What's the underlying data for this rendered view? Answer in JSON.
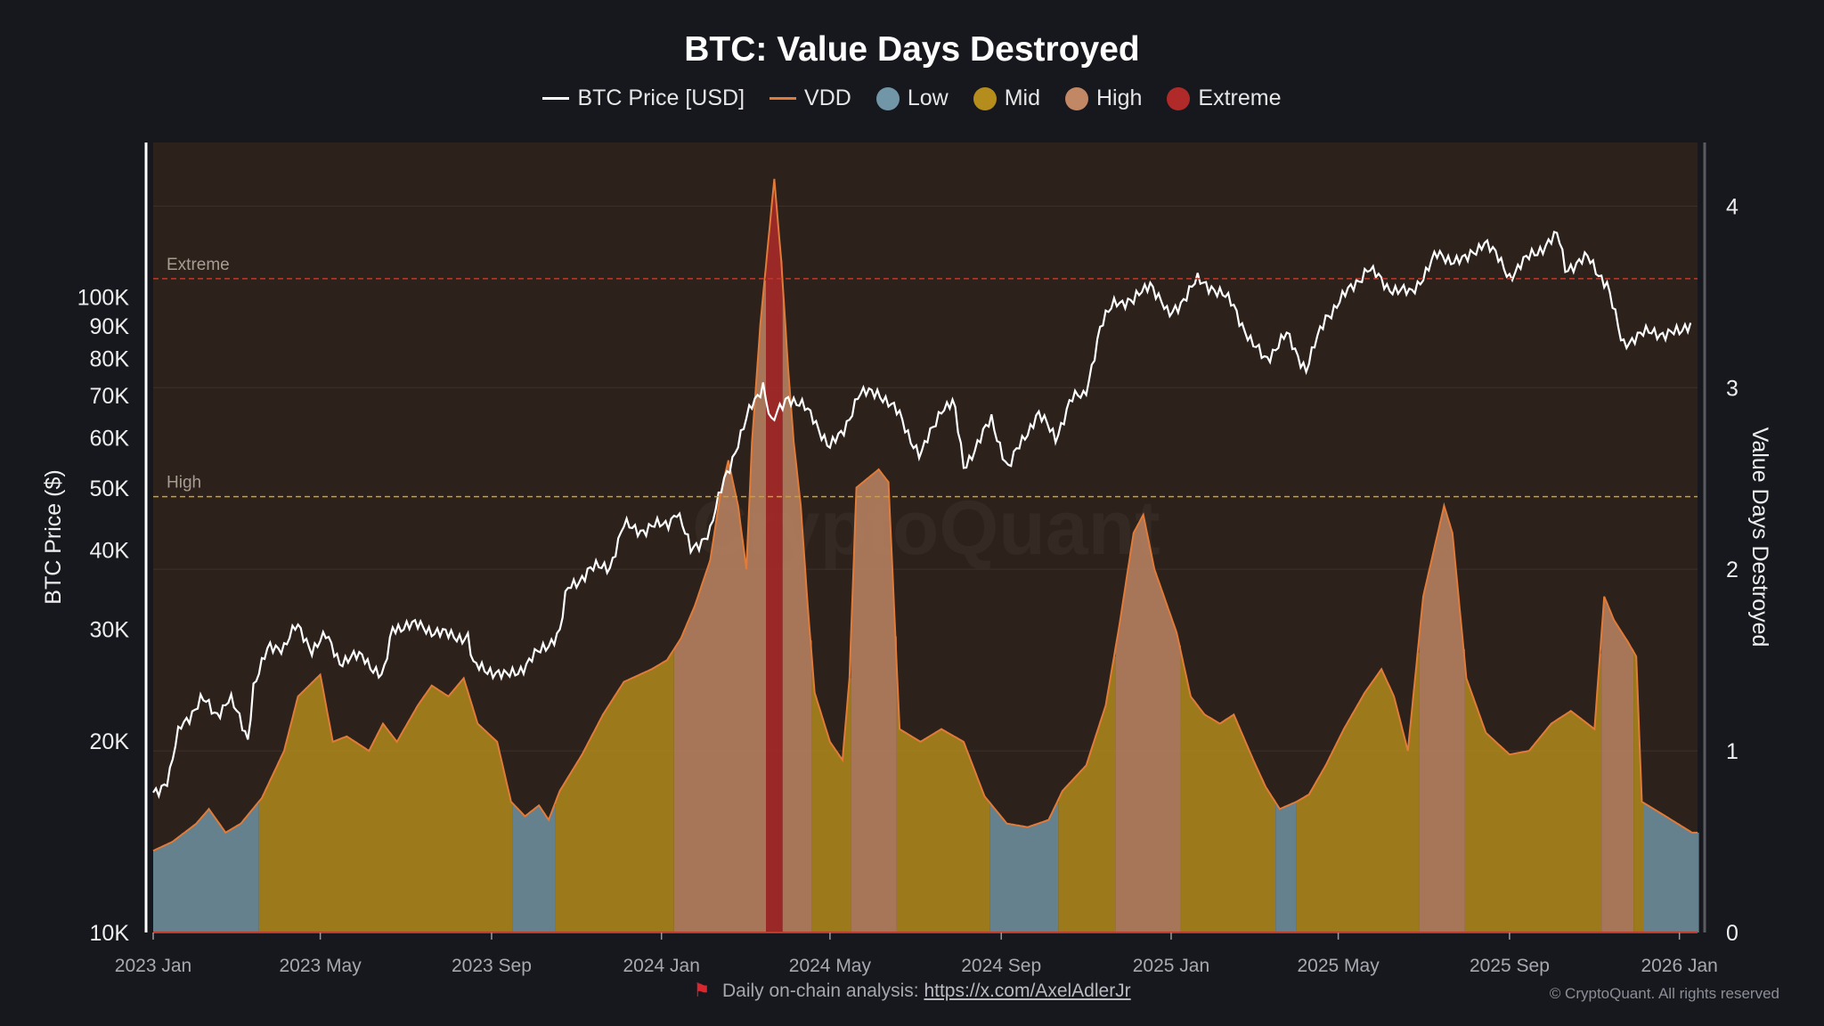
{
  "chart_data": {
    "type": "area",
    "title": "BTC: Value Days Destroyed",
    "legend": {
      "placement": "top-center",
      "items": [
        {
          "label": "BTC Price [USD]",
          "kind": "line",
          "color": "#ffffff"
        },
        {
          "label": "VDD",
          "kind": "line",
          "color": "#e07b39"
        },
        {
          "label": "Low",
          "kind": "dot",
          "color": "#7196a8"
        },
        {
          "label": "Mid",
          "kind": "dot",
          "color": "#b58d1c"
        },
        {
          "label": "High",
          "kind": "dot",
          "color": "#c28765"
        },
        {
          "label": "Extreme",
          "kind": "dot",
          "color": "#b12a2a"
        }
      ]
    },
    "x_axis": {
      "type": "date",
      "range": [
        "2023-01-01",
        "2026-01-14"
      ],
      "ticks": [
        {
          "label": "2023 Jan",
          "date": "2023-01-01"
        },
        {
          "label": "2023 May",
          "date": "2023-05-01"
        },
        {
          "label": "2023 Sep",
          "date": "2023-09-01"
        },
        {
          "label": "2024 Jan",
          "date": "2024-01-01"
        },
        {
          "label": "2024 May",
          "date": "2024-05-01"
        },
        {
          "label": "2024 Sep",
          "date": "2024-09-01"
        },
        {
          "label": "2025 Jan",
          "date": "2025-01-01"
        },
        {
          "label": "2025 May",
          "date": "2025-05-01"
        },
        {
          "label": "2025 Sep",
          "date": "2025-09-01"
        },
        {
          "label": "2026 Jan",
          "date": "2026-01-01"
        }
      ]
    },
    "y_axis_left": {
      "label": "BTC Price ($)",
      "scale": "log",
      "range": [
        10000,
        175000
      ],
      "ticks": [
        {
          "label": "10K",
          "value": 10000
        },
        {
          "label": "20K",
          "value": 20000
        },
        {
          "label": "30K",
          "value": 30000
        },
        {
          "label": "40K",
          "value": 40000
        },
        {
          "label": "50K",
          "value": 50000
        },
        {
          "label": "60K",
          "value": 60000
        },
        {
          "label": "70K",
          "value": 70000
        },
        {
          "label": "80K",
          "value": 80000
        },
        {
          "label": "90K",
          "value": 90000
        },
        {
          "label": "100K",
          "value": 100000
        }
      ]
    },
    "y_axis_right": {
      "label": "Value Days Destroyed",
      "scale": "linear",
      "range": [
        0,
        4.35
      ],
      "ticks": [
        {
          "label": "0",
          "value": 0
        },
        {
          "label": "1",
          "value": 1
        },
        {
          "label": "2",
          "value": 2
        },
        {
          "label": "3",
          "value": 3
        },
        {
          "label": "4",
          "value": 4
        }
      ]
    },
    "grid": true,
    "thresholds": [
      {
        "label": "High",
        "value": 2.4,
        "color": "#c9a227"
      },
      {
        "label": "Extreme",
        "value": 3.6,
        "color": "#c0392b"
      }
    ],
    "bands": {
      "low_max": 0.72,
      "mid_max": 1.55,
      "high_max": 3.6
    },
    "series": [
      {
        "name": "BTC Price [USD]",
        "axis": "left",
        "color": "#ffffff",
        "points": [
          [
            "2023-01-01",
            16600
          ],
          [
            "2023-01-12",
            17400
          ],
          [
            "2023-01-20",
            21000
          ],
          [
            "2023-02-05",
            23300
          ],
          [
            "2023-02-15",
            22000
          ],
          [
            "2023-02-25",
            23400
          ],
          [
            "2023-03-10",
            20200
          ],
          [
            "2023-03-14",
            24500
          ],
          [
            "2023-03-25",
            28000
          ],
          [
            "2023-04-05",
            28300
          ],
          [
            "2023-04-14",
            30300
          ],
          [
            "2023-04-25",
            28000
          ],
          [
            "2023-05-05",
            29200
          ],
          [
            "2023-05-15",
            26800
          ],
          [
            "2023-06-01",
            27200
          ],
          [
            "2023-06-15",
            25100
          ],
          [
            "2023-06-22",
            30100
          ],
          [
            "2023-07-01",
            30500
          ],
          [
            "2023-07-15",
            30200
          ],
          [
            "2023-08-01",
            29300
          ],
          [
            "2023-08-16",
            29200
          ],
          [
            "2023-08-18",
            26200
          ],
          [
            "2023-09-01",
            25900
          ],
          [
            "2023-09-11",
            25200
          ],
          [
            "2023-09-25",
            26300
          ],
          [
            "2023-10-05",
            27600
          ],
          [
            "2023-10-20",
            29700
          ],
          [
            "2023-10-25",
            34500
          ],
          [
            "2023-11-10",
            37200
          ],
          [
            "2023-11-25",
            37800
          ],
          [
            "2023-12-05",
            43600
          ],
          [
            "2023-12-20",
            43000
          ],
          [
            "2024-01-05",
            44100
          ],
          [
            "2024-01-12",
            46000
          ],
          [
            "2024-01-22",
            40000
          ],
          [
            "2024-02-05",
            42700
          ],
          [
            "2024-02-15",
            51800
          ],
          [
            "2024-02-28",
            61000
          ],
          [
            "2024-03-05",
            67000
          ],
          [
            "2024-03-14",
            73000
          ],
          [
            "2024-03-20",
            63000
          ],
          [
            "2024-04-01",
            70000
          ],
          [
            "2024-04-12",
            67000
          ],
          [
            "2024-04-20",
            64000
          ],
          [
            "2024-05-01",
            58000
          ],
          [
            "2024-05-10",
            61000
          ],
          [
            "2024-05-21",
            70000
          ],
          [
            "2024-06-05",
            71000
          ],
          [
            "2024-06-20",
            65000
          ],
          [
            "2024-07-05",
            56000
          ],
          [
            "2024-07-20",
            67000
          ],
          [
            "2024-07-29",
            68000
          ],
          [
            "2024-08-05",
            54000
          ],
          [
            "2024-08-25",
            64000
          ],
          [
            "2024-09-06",
            53800
          ],
          [
            "2024-09-27",
            65800
          ],
          [
            "2024-10-10",
            60000
          ],
          [
            "2024-10-21",
            69000
          ],
          [
            "2024-10-31",
            70000
          ],
          [
            "2024-11-11",
            89000
          ],
          [
            "2024-11-22",
            99000
          ],
          [
            "2024-12-05",
            98000
          ],
          [
            "2024-12-17",
            106000
          ],
          [
            "2024-12-30",
            93000
          ],
          [
            "2025-01-20",
            106000
          ],
          [
            "2025-01-30",
            104000
          ],
          [
            "2025-02-15",
            97000
          ],
          [
            "2025-02-28",
            84000
          ],
          [
            "2025-03-10",
            80000
          ],
          [
            "2025-03-25",
            87000
          ],
          [
            "2025-04-08",
            77000
          ],
          [
            "2025-04-22",
            93000
          ],
          [
            "2025-05-10",
            103000
          ],
          [
            "2025-05-22",
            111000
          ],
          [
            "2025-06-05",
            104000
          ],
          [
            "2025-06-22",
            101000
          ],
          [
            "2025-07-10",
            116000
          ],
          [
            "2025-08-01",
            114000
          ],
          [
            "2025-08-14",
            123000
          ],
          [
            "2025-09-01",
            108000
          ],
          [
            "2025-09-18",
            117000
          ],
          [
            "2025-10-06",
            125000
          ],
          [
            "2025-10-11",
            111000
          ],
          [
            "2025-10-27",
            115000
          ],
          [
            "2025-11-10",
            105000
          ],
          [
            "2025-11-21",
            84000
          ],
          [
            "2025-12-01",
            87000
          ],
          [
            "2025-12-15",
            88000
          ],
          [
            "2026-01-01",
            87500
          ],
          [
            "2026-01-10",
            92000
          ]
        ]
      },
      {
        "name": "VDD",
        "axis": "right",
        "color": "#e07b39",
        "points": [
          [
            "2023-01-01",
            0.45
          ],
          [
            "2023-01-15",
            0.5
          ],
          [
            "2023-02-01",
            0.6
          ],
          [
            "2023-02-10",
            0.68
          ],
          [
            "2023-02-22",
            0.55
          ],
          [
            "2023-03-05",
            0.6
          ],
          [
            "2023-03-20",
            0.74
          ],
          [
            "2023-04-05",
            1.0
          ],
          [
            "2023-04-15",
            1.3
          ],
          [
            "2023-05-01",
            1.42
          ],
          [
            "2023-05-10",
            1.05
          ],
          [
            "2023-05-20",
            1.08
          ],
          [
            "2023-06-05",
            1.0
          ],
          [
            "2023-06-15",
            1.15
          ],
          [
            "2023-06-25",
            1.05
          ],
          [
            "2023-07-10",
            1.25
          ],
          [
            "2023-07-20",
            1.36
          ],
          [
            "2023-08-01",
            1.3
          ],
          [
            "2023-08-12",
            1.4
          ],
          [
            "2023-08-22",
            1.15
          ],
          [
            "2023-09-05",
            1.05
          ],
          [
            "2023-09-15",
            0.72
          ],
          [
            "2023-09-25",
            0.64
          ],
          [
            "2023-10-05",
            0.7
          ],
          [
            "2023-10-12",
            0.62
          ],
          [
            "2023-10-20",
            0.78
          ],
          [
            "2023-11-05",
            0.98
          ],
          [
            "2023-11-20",
            1.2
          ],
          [
            "2023-12-05",
            1.38
          ],
          [
            "2023-12-25",
            1.45
          ],
          [
            "2024-01-05",
            1.5
          ],
          [
            "2024-01-15",
            1.62
          ],
          [
            "2024-01-25",
            1.8
          ],
          [
            "2024-02-05",
            2.05
          ],
          [
            "2024-02-12",
            2.4
          ],
          [
            "2024-02-18",
            2.6
          ],
          [
            "2024-02-25",
            2.35
          ],
          [
            "2024-03-02",
            2.0
          ],
          [
            "2024-03-06",
            2.7
          ],
          [
            "2024-03-12",
            3.35
          ],
          [
            "2024-03-17",
            3.75
          ],
          [
            "2024-03-22",
            4.15
          ],
          [
            "2024-03-27",
            3.7
          ],
          [
            "2024-04-01",
            3.1
          ],
          [
            "2024-04-05",
            2.7
          ],
          [
            "2024-04-10",
            2.35
          ],
          [
            "2024-04-15",
            1.8
          ],
          [
            "2024-04-20",
            1.32
          ],
          [
            "2024-05-01",
            1.05
          ],
          [
            "2024-05-10",
            0.95
          ],
          [
            "2024-05-15",
            1.4
          ],
          [
            "2024-05-20",
            2.45
          ],
          [
            "2024-05-28",
            2.5
          ],
          [
            "2024-06-05",
            2.55
          ],
          [
            "2024-06-12",
            2.48
          ],
          [
            "2024-06-20",
            1.12
          ],
          [
            "2024-07-05",
            1.05
          ],
          [
            "2024-07-20",
            1.12
          ],
          [
            "2024-08-05",
            1.05
          ],
          [
            "2024-08-20",
            0.75
          ],
          [
            "2024-09-05",
            0.6
          ],
          [
            "2024-09-20",
            0.58
          ],
          [
            "2024-10-05",
            0.62
          ],
          [
            "2024-10-15",
            0.78
          ],
          [
            "2024-11-01",
            0.92
          ],
          [
            "2024-11-15",
            1.25
          ],
          [
            "2024-11-25",
            1.7
          ],
          [
            "2024-12-05",
            2.2
          ],
          [
            "2024-12-12",
            2.3
          ],
          [
            "2024-12-20",
            2.0
          ],
          [
            "2025-01-05",
            1.65
          ],
          [
            "2025-01-15",
            1.3
          ],
          [
            "2025-01-25",
            1.2
          ],
          [
            "2025-02-05",
            1.15
          ],
          [
            "2025-02-15",
            1.2
          ],
          [
            "2025-03-01",
            0.95
          ],
          [
            "2025-03-10",
            0.8
          ],
          [
            "2025-03-20",
            0.68
          ],
          [
            "2025-04-01",
            0.72
          ],
          [
            "2025-04-10",
            0.76
          ],
          [
            "2025-04-22",
            0.92
          ],
          [
            "2025-05-05",
            1.12
          ],
          [
            "2025-05-20",
            1.32
          ],
          [
            "2025-06-01",
            1.45
          ],
          [
            "2025-06-10",
            1.3
          ],
          [
            "2025-06-20",
            1.0
          ],
          [
            "2025-07-01",
            1.85
          ],
          [
            "2025-07-10",
            2.15
          ],
          [
            "2025-07-16",
            2.35
          ],
          [
            "2025-07-22",
            2.2
          ],
          [
            "2025-08-01",
            1.4
          ],
          [
            "2025-08-15",
            1.1
          ],
          [
            "2025-09-01",
            0.98
          ],
          [
            "2025-09-15",
            1.0
          ],
          [
            "2025-10-01",
            1.15
          ],
          [
            "2025-10-15",
            1.22
          ],
          [
            "2025-11-01",
            1.12
          ],
          [
            "2025-11-08",
            1.85
          ],
          [
            "2025-11-15",
            1.72
          ],
          [
            "2025-11-25",
            1.6
          ],
          [
            "2025-12-01",
            1.52
          ],
          [
            "2025-12-05",
            0.72
          ],
          [
            "2025-12-20",
            0.65
          ],
          [
            "2026-01-10",
            0.55
          ]
        ]
      }
    ],
    "watermark": "CryptoQuant",
    "footer": {
      "text": "Daily on-chain analysis:",
      "link": "https://x.com/AxelAdlerJr"
    },
    "copyright": "© CryptoQuant. All rights reserved"
  }
}
